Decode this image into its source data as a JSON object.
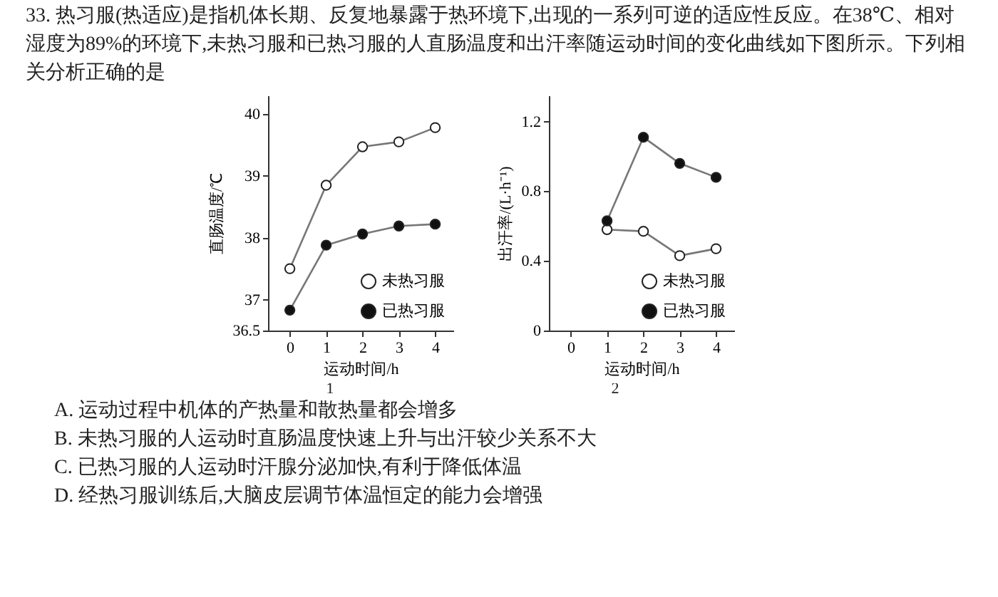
{
  "chart_data": [
    {
      "type": "line",
      "title": "33. 热习服(热适应)是指机体长期、反复地暴露于热环境下,出现的一系列可逆的适应性反应。在38℃、相对湿度为89%的环境下,未热习服和已热习服的人直肠温度和出汗率随运动时间的变化曲线如下图所示。下列相关分析正确的是",
      "xlabel": "运动时间/h",
      "ylabel": "直肠温度/℃",
      "annotations": [
        "1"
      ],
      "x": [
        0,
        1,
        2,
        3,
        4
      ],
      "xlim": [
        -0.6,
        4.5
      ],
      "xticks": [
        0,
        1,
        2,
        3,
        4
      ],
      "ylim": [
        36.5,
        40.3
      ],
      "yticks": [
        36.5,
        37,
        38,
        39,
        40
      ],
      "marker": "circle",
      "legend": "bottom right",
      "grid": false,
      "series": [
        {
          "name": "未热习服",
          "color": "#ffffff",
          "values": [
            37.5,
            38.85,
            39.47,
            39.55,
            39.78
          ]
        },
        {
          "name": "已热习服",
          "color": "#111111",
          "values": [
            36.83,
            37.88,
            38.06,
            38.19,
            38.22
          ]
        }
      ]
    },
    {
      "type": "line",
      "xlabel": "运动时间/h",
      "ylabel": "出汗率/(L·h⁻¹)",
      "annotations": [
        "2",
        "A. 运动过程中机体的产热量和散热量都会增多",
        "B. 未热习服的人运动时直肠温度快速上升与出汗较少关系不大",
        "C. 已热习服的人运动时汗腺分泌加快,有利于降低体温",
        "D. 经热习服训练后,大脑皮层调节体温恒定的能力会增强"
      ],
      "x": [
        1,
        2,
        3,
        4
      ],
      "xlim": [
        -0.6,
        4.5
      ],
      "xticks": [
        0,
        1,
        2,
        3,
        4
      ],
      "ylim": [
        0,
        1.35
      ],
      "yticks": [
        0,
        0.4,
        0.8,
        1.2
      ],
      "marker": "circle",
      "legend": "bottom right",
      "grid": false,
      "series": [
        {
          "name": "未热习服",
          "color": "#ffffff",
          "values": [
            0.58,
            0.57,
            0.43,
            0.47
          ]
        },
        {
          "name": "已热习服",
          "color": "#111111",
          "values": [
            0.63,
            1.11,
            0.96,
            0.88
          ]
        }
      ]
    }
  ]
}
